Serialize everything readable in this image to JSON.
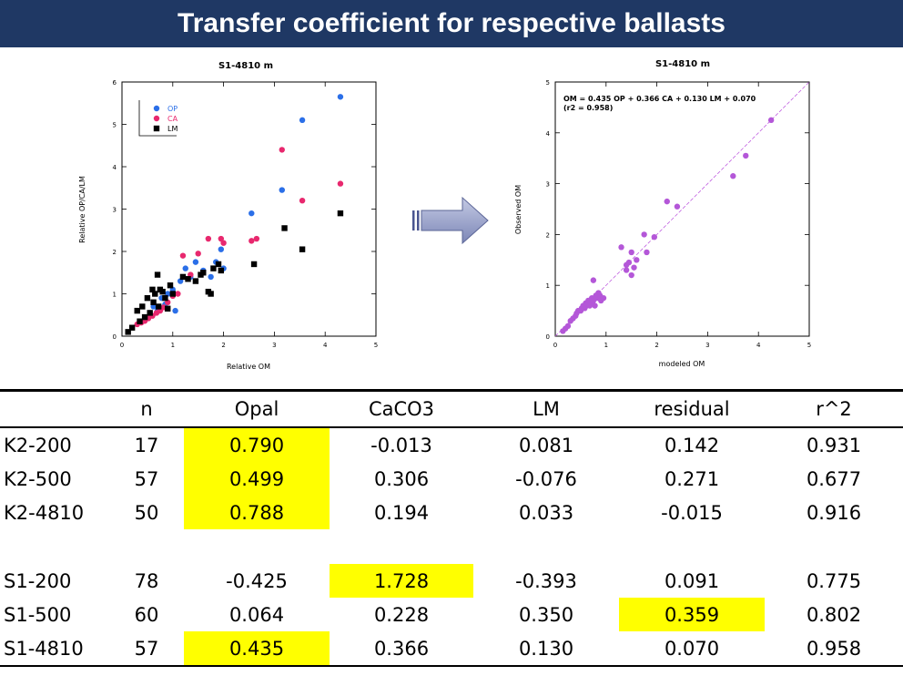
{
  "page_title": "Transfer coefficient for respective ballasts",
  "arrow_color": "#8e98c4",
  "highlight_color": "#ffff00",
  "chart_data": [
    {
      "type": "scatter",
      "title": "S1-4810 m",
      "xlabel": "Relative OM",
      "ylabel": "Relative OP/CA/LM",
      "xlim": [
        0,
        5
      ],
      "ylim": [
        0,
        6
      ],
      "xticks": [
        "0",
        "1",
        "2",
        "3",
        "4",
        "5"
      ],
      "yticks": [
        "0",
        "1",
        "2",
        "3",
        "4",
        "5",
        "6"
      ],
      "grid": false,
      "legend_position": "top-left",
      "series": [
        {
          "name": "OP",
          "color": "#2b6fe8",
          "marker": "circle",
          "x": [
            0.45,
            0.55,
            0.62,
            0.7,
            0.78,
            0.85,
            0.9,
            1.0,
            1.05,
            1.15,
            1.25,
            1.35,
            1.45,
            1.6,
            1.75,
            1.85,
            1.95,
            2.0,
            2.55,
            3.15,
            3.55,
            4.3
          ],
          "y": [
            0.4,
            0.55,
            0.7,
            0.6,
            0.9,
            0.75,
            1.0,
            1.1,
            0.6,
            1.3,
            1.6,
            1.4,
            1.75,
            1.55,
            1.4,
            1.75,
            2.05,
            1.6,
            2.9,
            3.45,
            5.1,
            5.65
          ]
        },
        {
          "name": "CA",
          "color": "#e8286e",
          "marker": "circle",
          "x": [
            0.3,
            0.38,
            0.45,
            0.52,
            0.6,
            0.68,
            0.75,
            0.82,
            0.9,
            1.0,
            1.1,
            1.2,
            1.35,
            1.5,
            1.6,
            1.7,
            1.95,
            2.0,
            2.55,
            2.65,
            3.15,
            3.55,
            4.3
          ],
          "y": [
            0.28,
            0.32,
            0.36,
            0.42,
            0.48,
            0.55,
            0.6,
            0.68,
            0.8,
            0.95,
            1.0,
            1.9,
            1.45,
            1.95,
            1.5,
            2.3,
            2.3,
            2.2,
            2.25,
            2.3,
            4.4,
            3.2,
            3.6
          ]
        },
        {
          "name": "LM",
          "color": "#000000",
          "marker": "square",
          "x": [
            0.12,
            0.2,
            0.3,
            0.35,
            0.4,
            0.45,
            0.5,
            0.55,
            0.6,
            0.62,
            0.65,
            0.7,
            0.72,
            0.75,
            0.8,
            0.85,
            0.9,
            0.95,
            1.0,
            1.2,
            1.3,
            1.45,
            1.55,
            1.6,
            1.7,
            1.75,
            1.8,
            1.9,
            1.95,
            2.6,
            3.2,
            3.55,
            4.3
          ],
          "y": [
            0.1,
            0.2,
            0.6,
            0.35,
            0.7,
            0.45,
            0.9,
            0.55,
            1.1,
            0.8,
            1.0,
            1.45,
            0.7,
            1.1,
            1.05,
            0.9,
            0.65,
            1.2,
            1.0,
            1.4,
            1.35,
            1.3,
            1.45,
            1.5,
            1.05,
            1.0,
            1.6,
            1.7,
            1.55,
            1.7,
            2.55,
            2.05,
            2.9
          ]
        }
      ]
    },
    {
      "type": "scatter",
      "title": "S1-4810 m",
      "xlabel": "modeled OM",
      "ylabel": "Observed OM",
      "xlim": [
        0,
        5
      ],
      "ylim": [
        0,
        5
      ],
      "xticks": [
        "0",
        "1",
        "2",
        "3",
        "4",
        "5"
      ],
      "yticks": [
        "0",
        "1",
        "2",
        "3",
        "4",
        "5"
      ],
      "grid": false,
      "annotation_line1": "OM = 0.435 OP + 0.366 CA + 0.130 LM + 0.070",
      "annotation_line2": "(r2 = 0.958)",
      "fit_line": {
        "x": [
          0,
          5
        ],
        "y": [
          0,
          5
        ],
        "color": "#c060e0",
        "style": "dashed"
      },
      "series": [
        {
          "name": "",
          "color": "#b457d8",
          "marker": "circle",
          "x": [
            0.15,
            0.2,
            0.25,
            0.3,
            0.35,
            0.4,
            0.42,
            0.45,
            0.5,
            0.52,
            0.55,
            0.58,
            0.6,
            0.62,
            0.65,
            0.68,
            0.7,
            0.72,
            0.75,
            0.78,
            0.8,
            0.82,
            0.85,
            0.88,
            0.9,
            0.95,
            0.75,
            1.4,
            1.45,
            1.5,
            1.55,
            1.6,
            1.4,
            1.3,
            1.5,
            1.75,
            1.8,
            1.95,
            2.2,
            2.4,
            3.5,
            3.75,
            4.25
          ],
          "y": [
            0.1,
            0.15,
            0.2,
            0.3,
            0.35,
            0.4,
            0.45,
            0.5,
            0.5,
            0.55,
            0.6,
            0.55,
            0.65,
            0.6,
            0.7,
            0.6,
            0.65,
            0.75,
            0.7,
            0.6,
            0.8,
            0.75,
            0.85,
            0.8,
            0.7,
            0.75,
            1.1,
            1.3,
            1.45,
            1.2,
            1.35,
            1.5,
            1.4,
            1.75,
            1.65,
            2.0,
            1.65,
            1.95,
            2.65,
            2.55,
            3.15,
            3.55,
            4.25
          ]
        }
      ]
    },
    {
      "type": "table",
      "columns": [
        "",
        "n",
        "Opal",
        "CaCO3",
        "LM",
        "residual",
        "r^2"
      ],
      "rows": [
        [
          "K2-200",
          "17",
          "0.790",
          "-0.013",
          "0.081",
          "0.142",
          "0.931"
        ],
        [
          "K2-500",
          "57",
          "0.499",
          "0.306",
          "-0.076",
          "0.271",
          "0.677"
        ],
        [
          "K2-4810",
          "50",
          "0.788",
          "0.194",
          "0.033",
          "-0.015",
          "0.916"
        ],
        [
          "S1-200",
          "78",
          "-0.425",
          "1.728",
          "-0.393",
          "0.091",
          "0.775"
        ],
        [
          "S1-500",
          "60",
          "0.064",
          "0.228",
          "0.350",
          "0.359",
          "0.802"
        ],
        [
          "S1-4810",
          "57",
          "0.435",
          "0.366",
          "0.130",
          "0.070",
          "0.958"
        ]
      ],
      "highlighted_cells": [
        [
          0,
          2
        ],
        [
          1,
          2
        ],
        [
          2,
          2
        ],
        [
          3,
          3
        ],
        [
          4,
          5
        ],
        [
          5,
          2
        ]
      ]
    }
  ]
}
